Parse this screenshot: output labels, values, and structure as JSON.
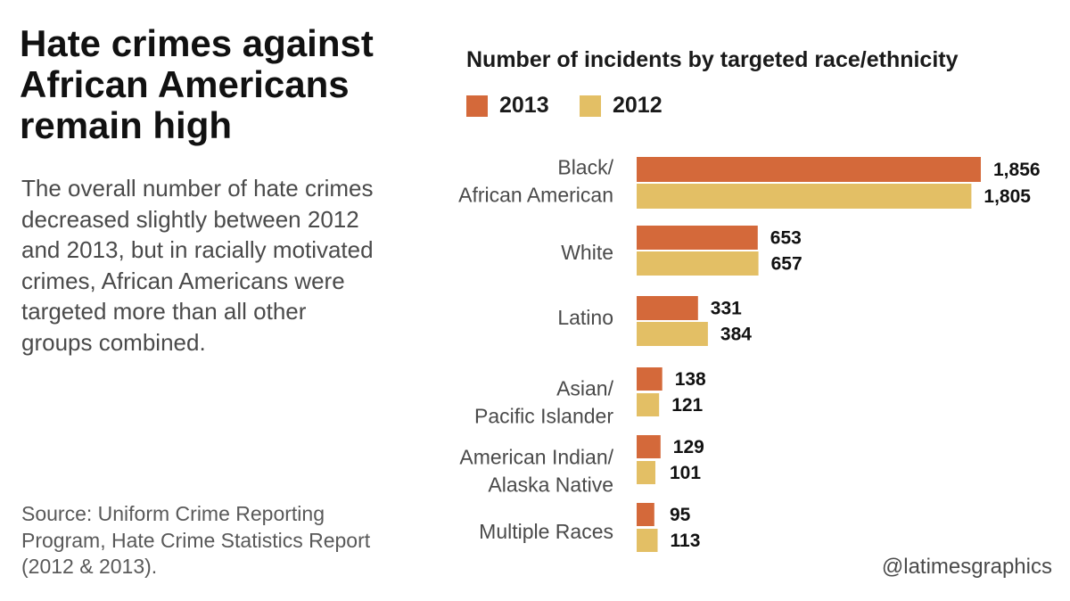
{
  "headline": "Hate crimes against African Americans remain high",
  "dek": "The overall number of hate crimes decreased slightly between 2012 and 2013, but in racially motivated crimes, African Americans were targeted more than all other groups combined.",
  "source": "Source: Uniform Crime Reporting Program, Hate Crime Statistics Report (2012 & 2013).",
  "credit": "@latimesgraphics",
  "colors": {
    "series_2013": "#d4693a",
    "series_2012": "#e3bf65"
  },
  "chart_data": {
    "type": "bar",
    "orientation": "horizontal",
    "title": "Number of incidents by targeted race/ethnicity",
    "legend_placement": "top-left",
    "grid": false,
    "xlim": [
      0,
      1856
    ],
    "categories": [
      [
        "Black/",
        "African American"
      ],
      [
        "White"
      ],
      [
        "Latino"
      ],
      [
        "Asian/",
        "Pacific Islander"
      ],
      [
        "American Indian/",
        "Alaska Native"
      ],
      [
        "Multiple Races"
      ]
    ],
    "series": [
      {
        "name": "2013",
        "values": [
          1856,
          653,
          331,
          138,
          129,
          95
        ],
        "labels": [
          "1,856",
          "653",
          "331",
          "138",
          "129",
          "95"
        ]
      },
      {
        "name": "2012",
        "values": [
          1805,
          657,
          384,
          121,
          101,
          113
        ],
        "labels": [
          "1,805",
          "657",
          "384",
          "121",
          "101",
          "113"
        ]
      }
    ]
  }
}
